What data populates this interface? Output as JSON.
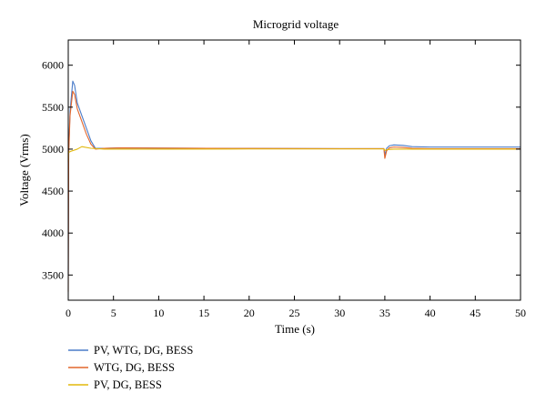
{
  "chart_data": {
    "type": "line",
    "title": "Microgrid voltage",
    "xlabel": "Time (s)",
    "ylabel": "Voltage (Vrms)",
    "xlim": [
      0,
      50
    ],
    "ylim": [
      3200,
      6300
    ],
    "xticks": [
      0,
      5,
      10,
      15,
      20,
      25,
      30,
      35,
      40,
      45,
      50
    ],
    "yticks": [
      3500,
      4000,
      4500,
      5000,
      5500,
      6000
    ],
    "grid": false,
    "legend_position": "below-left",
    "series": [
      {
        "name": "PV, WTG, DG, BESS",
        "color": "#4a7cc9",
        "x": [
          0,
          0.05,
          0.2,
          0.5,
          0.7,
          1.0,
          1.5,
          2.0,
          2.5,
          3.0,
          4.0,
          6.0,
          10,
          20,
          30,
          34.9,
          35.0,
          35.2,
          35.5,
          36.0,
          37.0,
          38.0,
          40,
          45,
          50
        ],
        "y": [
          3500,
          5000,
          5450,
          5810,
          5760,
          5550,
          5400,
          5250,
          5100,
          5010,
          5010,
          5015,
          5012,
          5008,
          5005,
          5005,
          4930,
          5010,
          5040,
          5050,
          5045,
          5030,
          5025,
          5025,
          5025
        ]
      },
      {
        "name": "WTG, DG, BESS",
        "color": "#e2662c",
        "x": [
          0,
          0.05,
          0.2,
          0.5,
          0.7,
          1.0,
          1.5,
          2.0,
          2.5,
          3.0,
          4.0,
          6.0,
          10,
          20,
          30,
          34.9,
          35.0,
          35.2,
          35.5,
          36.0,
          37.0,
          38.0,
          40,
          45,
          50
        ],
        "y": [
          3300,
          4950,
          5400,
          5690,
          5650,
          5480,
          5330,
          5180,
          5060,
          5000,
          5010,
          5015,
          5012,
          5008,
          5005,
          5005,
          4890,
          4980,
          5015,
          5025,
          5020,
          5010,
          5005,
          5005,
          5005
        ]
      },
      {
        "name": "PV, DG, BESS",
        "color": "#e2b80c",
        "x": [
          0,
          0.02,
          0.3,
          1.0,
          1.5,
          2.5,
          4.0,
          10,
          20,
          30,
          34.9,
          35.0,
          35.3,
          36.0,
          38.0,
          40,
          45,
          50
        ],
        "y": [
          4850,
          4960,
          4975,
          5000,
          5030,
          5010,
          5000,
          5000,
          5002,
          5002,
          5002,
          4985,
          4995,
          5000,
          5000,
          5000,
          5000,
          5000
        ]
      }
    ]
  }
}
